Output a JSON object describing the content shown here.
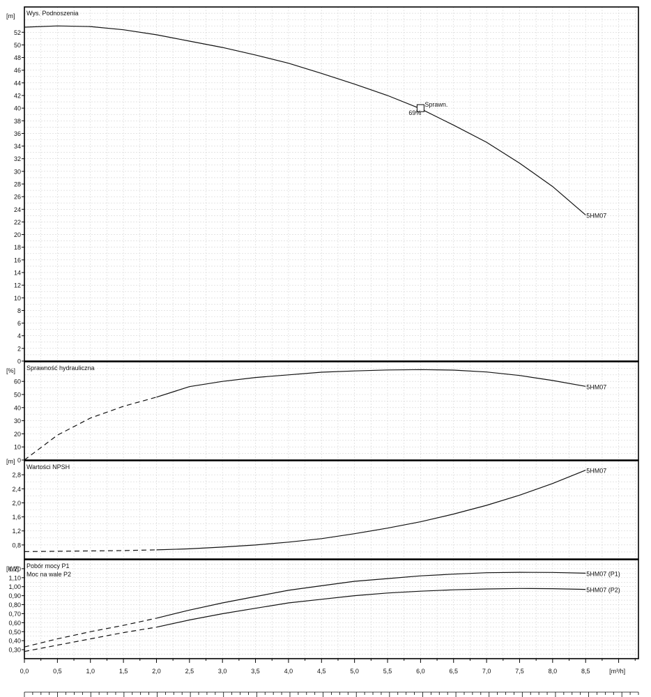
{
  "x_unit": "[m³/h]",
  "x_ticks": [
    "0,0",
    "0,5",
    "1,0",
    "1,5",
    "2,0",
    "2,5",
    "3,0",
    "3,5",
    "4,0",
    "4,5",
    "5,0",
    "5,5",
    "6,0",
    "6,5",
    "7,0",
    "7,5",
    "8,0",
    "8,5"
  ],
  "chart_data": [
    {
      "type": "line",
      "title": "Wys. Podnoszenia",
      "ylabel": "[m]",
      "xlim": [
        0,
        9.3
      ],
      "ylim": [
        0,
        56
      ],
      "y_ticks": [
        "0",
        "2",
        "4",
        "6",
        "8",
        "10",
        "12",
        "14",
        "16",
        "18",
        "20",
        "22",
        "24",
        "26",
        "28",
        "30",
        "32",
        "34",
        "36",
        "38",
        "40",
        "42",
        "44",
        "46",
        "48",
        "50",
        "52"
      ],
      "grid": true,
      "series": [
        {
          "name": "5HM07",
          "x": [
            0,
            0.5,
            1,
            1.5,
            2,
            2.5,
            3,
            3.5,
            4,
            4.5,
            5,
            5.5,
            6,
            6.5,
            7,
            7.5,
            8,
            8.5
          ],
          "y": [
            52.8,
            53.0,
            52.9,
            52.4,
            51.6,
            50.6,
            49.6,
            48.4,
            47.1,
            45.5,
            43.8,
            42.0,
            39.9,
            37.3,
            34.6,
            31.3,
            27.6,
            23.1
          ]
        }
      ],
      "annotation": {
        "label": "Sprawn.",
        "value": "69%",
        "x": 6.0,
        "y": 40
      }
    },
    {
      "type": "line",
      "title": "Sprawność hydrauliczna",
      "ylabel": "[%]",
      "xlim": [
        0,
        9.3
      ],
      "ylim": [
        0,
        75
      ],
      "y_ticks": [
        "0",
        "10",
        "20",
        "30",
        "40",
        "50",
        "60"
      ],
      "grid": true,
      "series": [
        {
          "name": "5HM07",
          "x": [
            0,
            0.5,
            1,
            1.5,
            2,
            2.5,
            3,
            3.5,
            4,
            4.5,
            5,
            5.5,
            6,
            6.5,
            7,
            7.5,
            8,
            8.5
          ],
          "y": [
            0,
            19,
            32,
            41,
            48,
            56,
            60,
            63,
            65,
            67,
            68,
            68.7,
            69,
            68.6,
            67.2,
            64.5,
            60.7,
            56.2
          ]
        }
      ]
    },
    {
      "type": "line",
      "title": "Wartości NPSH",
      "ylabel": "[m]",
      "xlim": [
        0,
        9.3
      ],
      "ylim": [
        0.4,
        3.2
      ],
      "y_ticks": [
        "0,8",
        "1,2",
        "1,6",
        "2,0",
        "2,4",
        "2,8"
      ],
      "grid": true,
      "series": [
        {
          "name": "5HM07",
          "x": [
            0,
            0.5,
            1,
            1.5,
            2,
            2.5,
            3,
            3.5,
            4,
            4.5,
            5,
            5.5,
            6,
            6.5,
            7,
            7.5,
            8,
            8.5
          ],
          "y": [
            0.61,
            0.62,
            0.63,
            0.64,
            0.66,
            0.69,
            0.74,
            0.8,
            0.88,
            0.98,
            1.12,
            1.28,
            1.46,
            1.68,
            1.93,
            2.22,
            2.55,
            2.93
          ]
        }
      ]
    },
    {
      "type": "line",
      "title": "Pobór mocy P1",
      "subtitle": "Moc na wale P2",
      "ylabel": "[kW]",
      "xlim": [
        0,
        9.3
      ],
      "ylim": [
        0.2,
        1.3
      ],
      "y_ticks": [
        "0,30",
        "0,40",
        "0,50",
        "0,60",
        "0,70",
        "0,80",
        "0,90",
        "1,00",
        "1,10",
        "1,20"
      ],
      "grid": true,
      "series": [
        {
          "name": "5HM07 (P1)",
          "x": [
            0,
            0.5,
            1,
            1.5,
            2,
            2.5,
            3,
            3.5,
            4,
            4.5,
            5,
            5.5,
            6,
            6.5,
            7,
            7.5,
            8,
            8.5
          ],
          "y": [
            0.33,
            0.42,
            0.5,
            0.57,
            0.65,
            0.74,
            0.82,
            0.89,
            0.96,
            1.01,
            1.06,
            1.09,
            1.12,
            1.14,
            1.155,
            1.16,
            1.158,
            1.15
          ]
        },
        {
          "name": "5HM07 (P2)",
          "x": [
            0,
            0.5,
            1,
            1.5,
            2,
            2.5,
            3,
            3.5,
            4,
            4.5,
            5,
            5.5,
            6,
            6.5,
            7,
            7.5,
            8,
            8.5
          ],
          "y": [
            0.28,
            0.35,
            0.42,
            0.49,
            0.55,
            0.63,
            0.7,
            0.76,
            0.82,
            0.86,
            0.9,
            0.93,
            0.95,
            0.965,
            0.975,
            0.98,
            0.978,
            0.97
          ]
        }
      ]
    }
  ]
}
